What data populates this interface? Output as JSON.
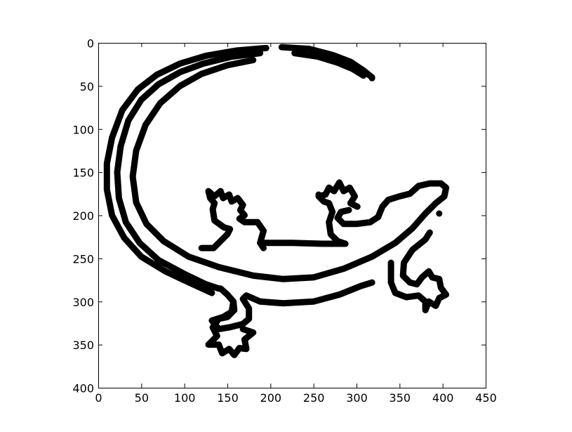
{
  "chart_data": {
    "type": "scatter",
    "title": "",
    "xlabel": "",
    "ylabel": "",
    "xlim": [
      0,
      450
    ],
    "ylim": [
      400,
      0
    ],
    "y_inverted": true,
    "grid": false,
    "xticks": [
      0,
      50,
      100,
      150,
      200,
      250,
      300,
      350,
      400,
      450
    ],
    "yticks": [
      0,
      50,
      100,
      150,
      200,
      250,
      300,
      350,
      400
    ],
    "xtick_labels": [
      "0",
      "50",
      "100",
      "150",
      "200",
      "250",
      "300",
      "350",
      "400",
      "450"
    ],
    "ytick_labels": [
      "0",
      "50",
      "100",
      "150",
      "200",
      "250",
      "300",
      "350",
      "400"
    ],
    "stroke_color": "#000000",
    "series": [
      {
        "kind": "outer-tail-arc",
        "points": [
          [
            195,
            6
          ],
          [
            160,
            9
          ],
          [
            125,
            15
          ],
          [
            95,
            24
          ],
          [
            68,
            37
          ],
          [
            46,
            54
          ],
          [
            28,
            78
          ],
          [
            16,
            110
          ],
          [
            10,
            140
          ],
          [
            10,
            170
          ],
          [
            16,
            200
          ],
          [
            30,
            226
          ],
          [
            50,
            248
          ],
          [
            78,
            265
          ],
          [
            110,
            280
          ],
          [
            132,
            290
          ]
        ]
      },
      {
        "kind": "upper-arc",
        "points": [
          [
            213,
            5
          ],
          [
            245,
            7
          ],
          [
            272,
            14
          ],
          [
            293,
            22
          ],
          [
            308,
            32
          ],
          [
            318,
            40
          ]
        ]
      },
      {
        "kind": "middle-tail-arc",
        "points": [
          [
            188,
            12
          ],
          [
            155,
            16
          ],
          [
            122,
            24
          ],
          [
            95,
            34
          ],
          [
            70,
            48
          ],
          [
            50,
            66
          ],
          [
            35,
            90
          ],
          [
            26,
            120
          ],
          [
            22,
            150
          ],
          [
            24,
            180
          ],
          [
            32,
            208
          ],
          [
            48,
            232
          ],
          [
            70,
            252
          ],
          [
            100,
            268
          ],
          [
            125,
            280
          ],
          [
            140,
            285
          ]
        ]
      },
      {
        "kind": "inner-tail-arc",
        "points": [
          [
            228,
            12
          ],
          [
            255,
            16
          ],
          [
            278,
            23
          ],
          [
            295,
            30
          ],
          [
            308,
            38
          ]
        ]
      },
      {
        "kind": "inner-belly-arc",
        "points": [
          [
            180,
            20
          ],
          [
            150,
            26
          ],
          [
            120,
            36
          ],
          [
            95,
            50
          ],
          [
            72,
            70
          ],
          [
            55,
            95
          ],
          [
            44,
            125
          ],
          [
            40,
            155
          ],
          [
            44,
            185
          ],
          [
            56,
            210
          ],
          [
            76,
            230
          ],
          [
            105,
            248
          ],
          [
            140,
            260
          ],
          [
            180,
            270
          ],
          [
            215,
            274
          ],
          [
            250,
            272
          ],
          [
            285,
            262
          ],
          [
            318,
            248
          ],
          [
            345,
            232
          ]
        ]
      },
      {
        "kind": "body-lower-outline",
        "points": [
          [
            142,
            285
          ],
          [
            150,
            292
          ],
          [
            157,
            300
          ],
          [
            155,
            312
          ],
          [
            145,
            318
          ],
          [
            132,
            322
          ],
          [
            140,
            332
          ],
          [
            152,
            330
          ],
          [
            168,
            326
          ],
          [
            175,
            320
          ],
          [
            175,
            308
          ],
          [
            168,
            297
          ],
          [
            172,
            293
          ],
          [
            188,
            300
          ],
          [
            215,
            302
          ],
          [
            250,
            300
          ],
          [
            280,
            292
          ],
          [
            305,
            282
          ],
          [
            318,
            278
          ]
        ]
      },
      {
        "kind": "body-upper-outline",
        "points": [
          [
            345,
            232
          ],
          [
            365,
            215
          ],
          [
            380,
            198
          ],
          [
            392,
            186
          ],
          [
            402,
            178
          ],
          [
            404,
            168
          ],
          [
            398,
            163
          ],
          [
            385,
            163
          ],
          [
            372,
            166
          ],
          [
            362,
            175
          ],
          [
            350,
            178
          ],
          [
            337,
            182
          ],
          [
            330,
            190
          ],
          [
            325,
            202
          ],
          [
            316,
            208
          ],
          [
            300,
            210
          ],
          [
            285,
            210
          ],
          [
            278,
            203
          ],
          [
            282,
            196
          ],
          [
            291,
            194
          ]
        ]
      },
      {
        "kind": "front-left-leg",
        "points": [
          [
            120,
            238
          ],
          [
            134,
            238
          ],
          [
            140,
            232
          ],
          [
            150,
            222
          ],
          [
            153,
            216
          ],
          [
            146,
            214
          ],
          [
            135,
            206
          ],
          [
            133,
            193
          ],
          [
            135,
            186
          ],
          [
            130,
            180
          ]
        ]
      },
      {
        "kind": "front-left-foot",
        "points": [
          [
            130,
            180
          ],
          [
            128,
            172
          ],
          [
            135,
            178
          ],
          [
            142,
            172
          ],
          [
            145,
            180
          ],
          [
            152,
            176
          ],
          [
            155,
            184
          ],
          [
            162,
            180
          ],
          [
            168,
            188
          ],
          [
            165,
            194
          ],
          [
            170,
            200
          ],
          [
            164,
            204
          ],
          [
            170,
            208
          ],
          [
            185,
            208
          ],
          [
            192,
            218
          ],
          [
            188,
            232
          ],
          [
            192,
            238
          ]
        ]
      },
      {
        "kind": "mid-bar",
        "points": [
          [
            192,
            232
          ],
          [
            225,
            232
          ],
          [
            260,
            233
          ],
          [
            287,
            233
          ]
        ]
      },
      {
        "kind": "front-right-foot",
        "points": [
          [
            287,
            233
          ],
          [
            278,
            230
          ],
          [
            270,
            222
          ],
          [
            268,
            208
          ],
          [
            272,
            196
          ],
          [
            268,
            186
          ],
          [
            262,
            184
          ],
          [
            256,
            178
          ],
          [
            264,
            176
          ],
          [
            268,
            168
          ],
          [
            274,
            172
          ],
          [
            280,
            162
          ],
          [
            285,
            172
          ],
          [
            292,
            168
          ],
          [
            298,
            178
          ],
          [
            293,
            186
          ],
          [
            301,
            190
          ]
        ]
      },
      {
        "kind": "rear-left-foot",
        "points": [
          [
            157,
            300
          ],
          [
            158,
            310
          ],
          [
            150,
            318
          ],
          [
            140,
            320
          ],
          [
            133,
            330
          ],
          [
            138,
            340
          ],
          [
            128,
            350
          ],
          [
            140,
            350
          ],
          [
            144,
            360
          ],
          [
            152,
            355
          ],
          [
            158,
            362
          ],
          [
            164,
            354
          ],
          [
            172,
            355
          ],
          [
            170,
            344
          ],
          [
            180,
            336
          ],
          [
            168,
            332
          ]
        ]
      },
      {
        "kind": "rear-right-leg",
        "points": [
          [
            340,
            255
          ],
          [
            340,
            278
          ],
          [
            345,
            290
          ],
          [
            358,
            295
          ],
          [
            372,
            293
          ],
          [
            380,
            300
          ],
          [
            380,
            310
          ],
          [
            384,
            300
          ],
          [
            392,
            305
          ],
          [
            396,
            296
          ],
          [
            404,
            292
          ],
          [
            398,
            284
          ],
          [
            396,
            274
          ],
          [
            388,
            272
          ],
          [
            384,
            265
          ],
          [
            376,
            272
          ],
          [
            370,
            280
          ],
          [
            362,
            278
          ],
          [
            354,
            270
          ],
          [
            355,
            255
          ],
          [
            365,
            240
          ],
          [
            380,
            228
          ],
          [
            385,
            220
          ]
        ]
      }
    ],
    "dots": [
      [
        318,
        41
      ],
      [
        396,
        198
      ],
      [
        256,
        176
      ]
    ]
  }
}
